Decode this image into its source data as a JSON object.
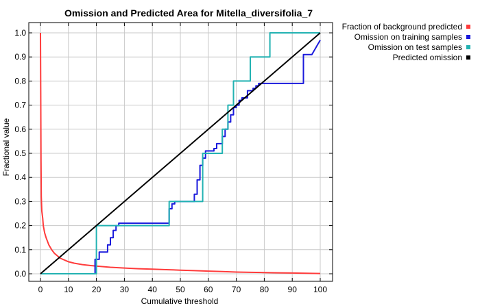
{
  "chart_data": {
    "type": "line",
    "title": "Omission and Predicted Area for Mitella_diversifolia_7",
    "xlabel": "Cumulative threshold",
    "ylabel": "Fractional value",
    "xlim": [
      0,
      100
    ],
    "ylim": [
      0,
      1.0
    ],
    "x_ticks": [
      "0",
      "10",
      "20",
      "30",
      "40",
      "50",
      "60",
      "70",
      "80",
      "90",
      "100"
    ],
    "y_ticks": [
      "0.0",
      "0.1",
      "0.2",
      "0.3",
      "0.4",
      "0.5",
      "0.6",
      "0.7",
      "0.8",
      "0.9",
      "1.0"
    ],
    "grid": true,
    "legend_position": "top-right-outside",
    "series": [
      {
        "name": "Fraction of background predicted",
        "color": "#ff3b3b",
        "x": [
          0,
          0.1,
          0.2,
          0.3,
          0.5,
          0.8,
          1,
          1.5,
          2,
          3,
          4,
          5,
          6,
          7,
          8,
          10,
          12,
          15,
          18,
          20,
          25,
          30,
          35,
          40,
          45,
          50,
          55,
          60,
          65,
          70,
          75,
          80,
          85,
          90,
          95,
          100
        ],
        "y": [
          1.0,
          0.75,
          0.47,
          0.32,
          0.26,
          0.23,
          0.2,
          0.17,
          0.15,
          0.12,
          0.1,
          0.085,
          0.075,
          0.065,
          0.06,
          0.05,
          0.044,
          0.038,
          0.034,
          0.032,
          0.027,
          0.024,
          0.021,
          0.019,
          0.017,
          0.015,
          0.013,
          0.011,
          0.009,
          0.007,
          0.006,
          0.005,
          0.004,
          0.003,
          0.002,
          0.001
        ]
      },
      {
        "name": "Omission on training samples",
        "color": "#1a1adc",
        "x": [
          0,
          19.5,
          19.5,
          21,
          21,
          24,
          24,
          25,
          25,
          26,
          26,
          27,
          27,
          28,
          28,
          46,
          46,
          47,
          47,
          48,
          48,
          55,
          55,
          56,
          56,
          57,
          57,
          58,
          58,
          59,
          59,
          62,
          62,
          63,
          63,
          65,
          65,
          66,
          66,
          67,
          67,
          68,
          68,
          69,
          69,
          70,
          70,
          71,
          71,
          72,
          72,
          74,
          74,
          75,
          75,
          76,
          76,
          77,
          77,
          78,
          78,
          94,
          94,
          97,
          100
        ],
        "y": [
          0,
          0,
          0.06,
          0.06,
          0.09,
          0.09,
          0.12,
          0.12,
          0.15,
          0.15,
          0.18,
          0.18,
          0.2,
          0.2,
          0.21,
          0.21,
          0.27,
          0.27,
          0.29,
          0.29,
          0.3,
          0.3,
          0.33,
          0.33,
          0.39,
          0.39,
          0.45,
          0.45,
          0.48,
          0.48,
          0.51,
          0.51,
          0.52,
          0.52,
          0.54,
          0.54,
          0.57,
          0.57,
          0.6,
          0.6,
          0.63,
          0.63,
          0.66,
          0.66,
          0.69,
          0.69,
          0.7,
          0.7,
          0.72,
          0.72,
          0.73,
          0.73,
          0.76,
          0.76,
          0.76,
          0.76,
          0.77,
          0.77,
          0.78,
          0.78,
          0.79,
          0.79,
          0.91,
          0.91,
          0.97
        ]
      },
      {
        "name": "Omission on test samples",
        "color": "#22b2b2",
        "x": [
          0,
          20,
          20,
          46,
          46,
          58,
          58,
          65,
          65,
          67,
          67,
          69,
          69,
          70,
          70,
          75,
          75,
          82,
          82,
          100
        ],
        "y": [
          0,
          0,
          0.2,
          0.2,
          0.3,
          0.3,
          0.5,
          0.5,
          0.6,
          0.6,
          0.7,
          0.7,
          0.8,
          0.8,
          0.8,
          0.8,
          0.9,
          0.9,
          1.0,
          1.0
        ]
      },
      {
        "name": "Predicted omission",
        "color": "#000000",
        "x": [
          0,
          100
        ],
        "y": [
          0,
          1.0
        ]
      }
    ]
  }
}
